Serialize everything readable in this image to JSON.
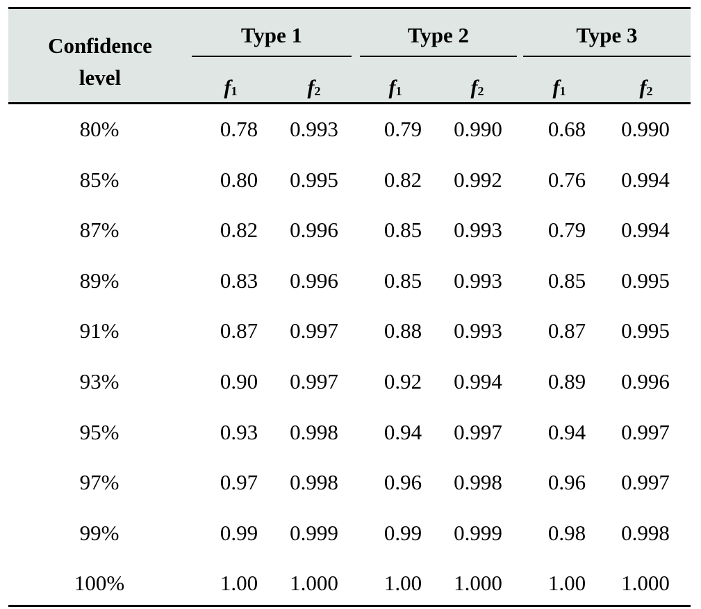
{
  "table": {
    "header": {
      "confidence_label": "Confidence\nlevel",
      "groups": [
        "Type 1",
        "Type 2",
        "Type 3"
      ],
      "subcolumns": [
        {
          "base": "f",
          "sub": "1"
        },
        {
          "base": "f",
          "sub": "2"
        },
        {
          "base": "f",
          "sub": "1"
        },
        {
          "base": "f",
          "sub": "2"
        },
        {
          "base": "f",
          "sub": "1"
        },
        {
          "base": "f",
          "sub": "2"
        }
      ]
    },
    "rows": [
      {
        "level": "80%",
        "values": [
          "0.78",
          "0.993",
          "0.79",
          "0.990",
          "0.68",
          "0.990"
        ]
      },
      {
        "level": "85%",
        "values": [
          "0.80",
          "0.995",
          "0.82",
          "0.992",
          "0.76",
          "0.994"
        ]
      },
      {
        "level": "87%",
        "values": [
          "0.82",
          "0.996",
          "0.85",
          "0.993",
          "0.79",
          "0.994"
        ]
      },
      {
        "level": "89%",
        "values": [
          "0.83",
          "0.996",
          "0.85",
          "0.993",
          "0.85",
          "0.995"
        ]
      },
      {
        "level": "91%",
        "values": [
          "0.87",
          "0.997",
          "0.88",
          "0.993",
          "0.87",
          "0.995"
        ]
      },
      {
        "level": "93%",
        "values": [
          "0.90",
          "0.997",
          "0.92",
          "0.994",
          "0.89",
          "0.996"
        ]
      },
      {
        "level": "95%",
        "values": [
          "0.93",
          "0.998",
          "0.94",
          "0.997",
          "0.94",
          "0.997"
        ]
      },
      {
        "level": "97%",
        "values": [
          "0.97",
          "0.998",
          "0.96",
          "0.998",
          "0.96",
          "0.997"
        ]
      },
      {
        "level": "99%",
        "values": [
          "0.99",
          "0.999",
          "0.99",
          "0.999",
          "0.98",
          "0.998"
        ]
      },
      {
        "level": "100%",
        "values": [
          "1.00",
          "1.000",
          "1.00",
          "1.000",
          "1.00",
          "1.000"
        ]
      }
    ]
  }
}
